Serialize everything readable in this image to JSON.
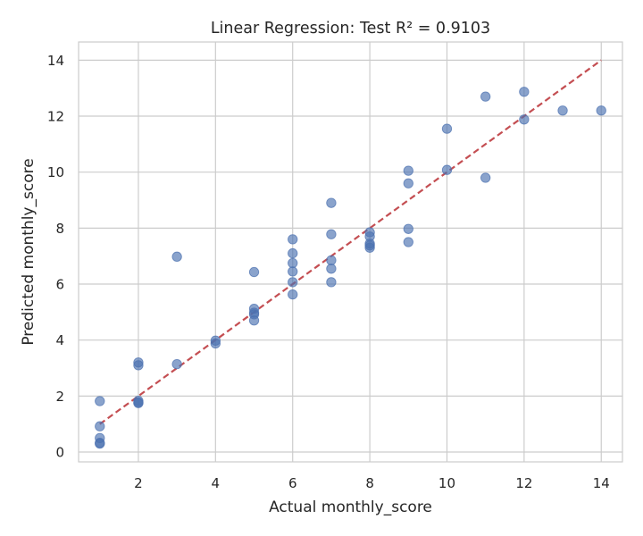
{
  "chart_data": {
    "type": "scatter",
    "title": "Linear Regression: Test R² = 0.9103",
    "xlabel": "Actual monthly_score",
    "ylabel": "Predicted monthly_score",
    "xlim": [
      0.45,
      14.55
    ],
    "ylim": [
      -0.35,
      14.65
    ],
    "xticks": [
      2,
      4,
      6,
      8,
      10,
      12,
      14
    ],
    "yticks": [
      0,
      2,
      4,
      6,
      8,
      10,
      12,
      14
    ],
    "grid": true,
    "points_color": "#4c72b0",
    "fit_line_color": "#c44e52",
    "fit_line": {
      "x": [
        1,
        14
      ],
      "y": [
        1,
        14
      ],
      "style": "dashed"
    },
    "points": [
      {
        "x": 1,
        "y": 1.82
      },
      {
        "x": 1,
        "y": 0.92
      },
      {
        "x": 1,
        "y": 0.5
      },
      {
        "x": 1,
        "y": 0.33
      },
      {
        "x": 1,
        "y": 0.3
      },
      {
        "x": 2,
        "y": 3.2
      },
      {
        "x": 2,
        "y": 3.1
      },
      {
        "x": 2,
        "y": 1.83
      },
      {
        "x": 2,
        "y": 1.77
      },
      {
        "x": 2,
        "y": 1.75
      },
      {
        "x": 3,
        "y": 6.98
      },
      {
        "x": 3,
        "y": 3.14
      },
      {
        "x": 4,
        "y": 3.98
      },
      {
        "x": 4,
        "y": 3.88
      },
      {
        "x": 5,
        "y": 6.43
      },
      {
        "x": 5,
        "y": 5.12
      },
      {
        "x": 5,
        "y": 4.98
      },
      {
        "x": 5,
        "y": 4.92
      },
      {
        "x": 5,
        "y": 4.7
      },
      {
        "x": 6,
        "y": 7.6
      },
      {
        "x": 6,
        "y": 7.1
      },
      {
        "x": 6,
        "y": 6.75
      },
      {
        "x": 6,
        "y": 6.45
      },
      {
        "x": 6,
        "y": 6.07
      },
      {
        "x": 6,
        "y": 5.63
      },
      {
        "x": 7,
        "y": 8.9
      },
      {
        "x": 7,
        "y": 7.78
      },
      {
        "x": 7,
        "y": 6.85
      },
      {
        "x": 7,
        "y": 6.55
      },
      {
        "x": 7,
        "y": 6.07
      },
      {
        "x": 8,
        "y": 7.85
      },
      {
        "x": 8,
        "y": 7.7
      },
      {
        "x": 8,
        "y": 7.45
      },
      {
        "x": 8,
        "y": 7.38
      },
      {
        "x": 8,
        "y": 7.3
      },
      {
        "x": 9,
        "y": 10.05
      },
      {
        "x": 9,
        "y": 9.6
      },
      {
        "x": 9,
        "y": 7.97
      },
      {
        "x": 9,
        "y": 7.5
      },
      {
        "x": 10,
        "y": 11.55
      },
      {
        "x": 10,
        "y": 10.08
      },
      {
        "x": 11,
        "y": 12.7
      },
      {
        "x": 11,
        "y": 9.8
      },
      {
        "x": 12,
        "y": 12.87
      },
      {
        "x": 12,
        "y": 11.88
      },
      {
        "x": 13,
        "y": 12.2
      },
      {
        "x": 14,
        "y": 12.2
      }
    ]
  }
}
